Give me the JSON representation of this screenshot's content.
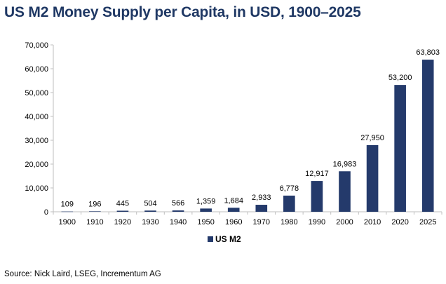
{
  "colors": {
    "bar": "#243a6b",
    "title": "#1f3864",
    "axis": "#bfbfbf"
  },
  "title": "US M2 Money Supply per Capita, in USD, 1900–2025",
  "source": "Source: Nick Laird, LSEG, Incrementum AG",
  "chart_data": {
    "type": "bar",
    "title": "US M2 Money Supply per Capita, in USD, 1900–2025",
    "xlabel": "",
    "ylabel": "",
    "categories": [
      "1900",
      "1910",
      "1920",
      "1930",
      "1940",
      "1950",
      "1960",
      "1970",
      "1980",
      "1990",
      "2000",
      "2010",
      "2020",
      "2025"
    ],
    "series": [
      {
        "name": "US M2",
        "values": [
          109,
          196,
          445,
          504,
          566,
          1359,
          1684,
          2933,
          6778,
          12917,
          16983,
          27950,
          53200,
          63803
        ],
        "labels": [
          "109",
          "196",
          "445",
          "504",
          "566",
          "1,359",
          "1,684",
          "2,933",
          "6,778",
          "12,917",
          "16,983",
          "27,950",
          "53,200",
          "63,803"
        ]
      }
    ],
    "ylim": [
      0,
      70000
    ],
    "yticks": [
      0,
      10000,
      20000,
      30000,
      40000,
      50000,
      60000,
      70000
    ],
    "ytick_labels": [
      "0",
      "10,000",
      "20,000",
      "30,000",
      "40,000",
      "50,000",
      "60,000",
      "70,000"
    ],
    "grid": false,
    "legend": "bottom-center"
  }
}
